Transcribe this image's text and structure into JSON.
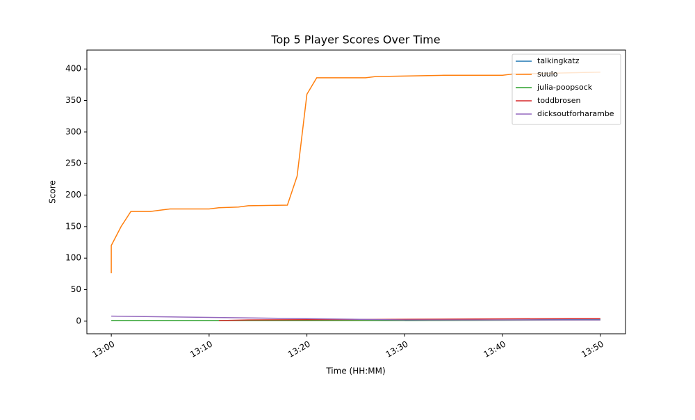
{
  "chart_data": {
    "type": "line",
    "title": "Top 5 Player Scores Over Time",
    "x_label": "Time (HH:MM)",
    "y_label": "Score",
    "xlim": [
      "12:58",
      "13:53"
    ],
    "xticks": [
      "13:00",
      "13:10",
      "13:20",
      "13:30",
      "13:40",
      "13:50"
    ],
    "ylim": [
      -20,
      430
    ],
    "yticks": [
      0,
      50,
      100,
      150,
      200,
      250,
      300,
      350,
      400
    ],
    "legend": "upper right",
    "grid": false,
    "series": [
      {
        "name": "talkingkatz",
        "color": "#1f77b4",
        "x": [
          "13:30",
          "13:40",
          "13:50"
        ],
        "values": [
          1,
          2,
          3
        ]
      },
      {
        "name": "suulo",
        "color": "#ff7f0e",
        "x": [
          "13:00",
          "13:00",
          "13:01",
          "13:02",
          "13:04",
          "13:05",
          "13:06",
          "13:10",
          "13:11",
          "13:13",
          "13:14",
          "13:18",
          "13:19",
          "13:20",
          "13:21",
          "13:26",
          "13:27",
          "13:34",
          "13:40",
          "13:41",
          "13:50"
        ],
        "values": [
          76,
          120,
          150,
          174,
          174,
          176,
          178,
          178,
          180,
          181,
          183,
          184,
          230,
          360,
          386,
          386,
          388,
          390,
          390,
          392,
          395
        ]
      },
      {
        "name": "julia-poopsock",
        "color": "#2ca02c",
        "x": [
          "13:00",
          "13:30",
          "13:50"
        ],
        "values": [
          1,
          1,
          2
        ]
      },
      {
        "name": "toddbrosen",
        "color": "#d62728",
        "x": [
          "13:11",
          "13:14",
          "13:31",
          "13:47",
          "13:50"
        ],
        "values": [
          1,
          2,
          3,
          4,
          4
        ]
      },
      {
        "name": "dicksoutforharambe",
        "color": "#9467bd",
        "x": [
          "13:00",
          "13:30",
          "13:50"
        ],
        "values": [
          8,
          2,
          2
        ]
      }
    ]
  }
}
